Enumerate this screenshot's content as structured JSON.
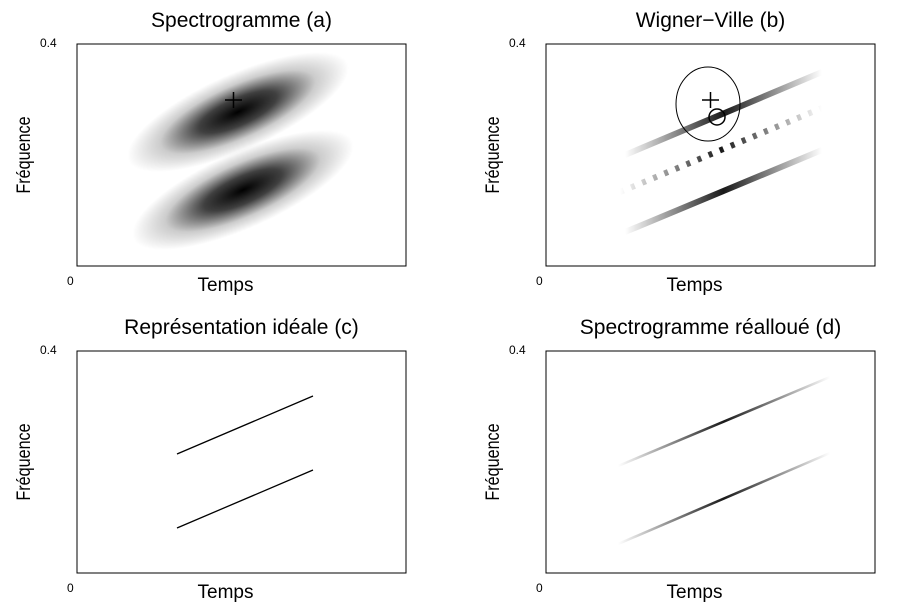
{
  "panels": [
    {
      "title": "Spectrogramme (a)",
      "xlabel": "Temps",
      "ylabel": "Fréquence",
      "ytop": "0.4",
      "origin": "0"
    },
    {
      "title": "Wigner−Ville (b)",
      "xlabel": "Temps",
      "ylabel": "Fréquence",
      "ytop": "0.4",
      "origin": "0"
    },
    {
      "title": "Représentation idéale (c)",
      "xlabel": "Temps",
      "ylabel": "Fréquence",
      "ytop": "0.4",
      "origin": "0"
    },
    {
      "title": "Spectrogramme réalloué (d)",
      "xlabel": "Temps",
      "ylabel": "Fréquence",
      "ytop": "0.4",
      "origin": "0"
    }
  ]
}
